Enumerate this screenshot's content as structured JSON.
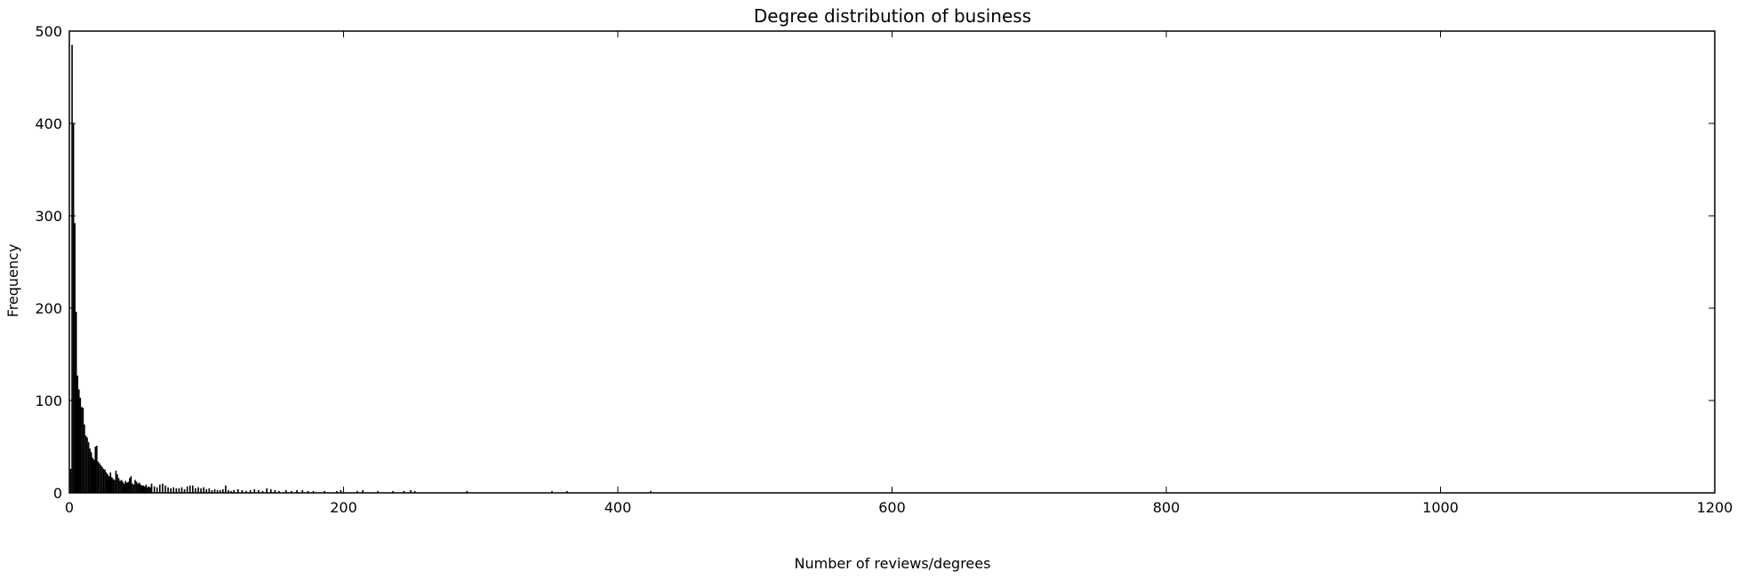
{
  "chart_data": {
    "type": "bar",
    "title": "Degree distribution of business",
    "xlabel": "Number of reviews/degrees",
    "ylabel": "Frequency",
    "xlim": [
      0,
      1200
    ],
    "ylim": [
      0,
      500
    ],
    "x_ticks": [
      "0",
      "200",
      "400",
      "600",
      "800",
      "1000",
      "1200"
    ],
    "y_ticks": [
      "0",
      "100",
      "200",
      "300",
      "400",
      "500"
    ],
    "grid": false,
    "bar_color": "#000000",
    "bins": [
      {
        "x": 1,
        "y": 26
      },
      {
        "x": 2,
        "y": 485
      },
      {
        "x": 3,
        "y": 400
      },
      {
        "x": 4,
        "y": 292
      },
      {
        "x": 5,
        "y": 196
      },
      {
        "x": 6,
        "y": 127
      },
      {
        "x": 7,
        "y": 112
      },
      {
        "x": 8,
        "y": 103
      },
      {
        "x": 9,
        "y": 93
      },
      {
        "x": 10,
        "y": 92
      },
      {
        "x": 11,
        "y": 74
      },
      {
        "x": 12,
        "y": 62
      },
      {
        "x": 13,
        "y": 60
      },
      {
        "x": 14,
        "y": 55
      },
      {
        "x": 15,
        "y": 48
      },
      {
        "x": 16,
        "y": 44
      },
      {
        "x": 17,
        "y": 38
      },
      {
        "x": 18,
        "y": 36
      },
      {
        "x": 19,
        "y": 50
      },
      {
        "x": 20,
        "y": 51
      },
      {
        "x": 21,
        "y": 34
      },
      {
        "x": 22,
        "y": 32
      },
      {
        "x": 23,
        "y": 30
      },
      {
        "x": 24,
        "y": 28
      },
      {
        "x": 25,
        "y": 26
      },
      {
        "x": 26,
        "y": 25
      },
      {
        "x": 27,
        "y": 22
      },
      {
        "x": 28,
        "y": 20
      },
      {
        "x": 29,
        "y": 18
      },
      {
        "x": 30,
        "y": 22
      },
      {
        "x": 31,
        "y": 17
      },
      {
        "x": 32,
        "y": 15
      },
      {
        "x": 33,
        "y": 14
      },
      {
        "x": 34,
        "y": 24
      },
      {
        "x": 35,
        "y": 20
      },
      {
        "x": 36,
        "y": 16
      },
      {
        "x": 37,
        "y": 13
      },
      {
        "x": 38,
        "y": 14
      },
      {
        "x": 39,
        "y": 12
      },
      {
        "x": 40,
        "y": 10
      },
      {
        "x": 41,
        "y": 13
      },
      {
        "x": 42,
        "y": 11
      },
      {
        "x": 43,
        "y": 12
      },
      {
        "x": 44,
        "y": 16
      },
      {
        "x": 45,
        "y": 18
      },
      {
        "x": 46,
        "y": 10
      },
      {
        "x": 47,
        "y": 9
      },
      {
        "x": 48,
        "y": 14
      },
      {
        "x": 49,
        "y": 12
      },
      {
        "x": 50,
        "y": 10
      },
      {
        "x": 51,
        "y": 11
      },
      {
        "x": 52,
        "y": 9
      },
      {
        "x": 53,
        "y": 8
      },
      {
        "x": 54,
        "y": 8
      },
      {
        "x": 55,
        "y": 7
      },
      {
        "x": 56,
        "y": 9
      },
      {
        "x": 57,
        "y": 6
      },
      {
        "x": 58,
        "y": 7
      },
      {
        "x": 59,
        "y": 6
      },
      {
        "x": 60,
        "y": 10
      },
      {
        "x": 62,
        "y": 7
      },
      {
        "x": 64,
        "y": 6
      },
      {
        "x": 66,
        "y": 9
      },
      {
        "x": 68,
        "y": 10
      },
      {
        "x": 70,
        "y": 8
      },
      {
        "x": 72,
        "y": 6
      },
      {
        "x": 74,
        "y": 5
      },
      {
        "x": 76,
        "y": 6
      },
      {
        "x": 78,
        "y": 5
      },
      {
        "x": 80,
        "y": 5
      },
      {
        "x": 82,
        "y": 6
      },
      {
        "x": 84,
        "y": 4
      },
      {
        "x": 86,
        "y": 7
      },
      {
        "x": 88,
        "y": 8
      },
      {
        "x": 90,
        "y": 8
      },
      {
        "x": 92,
        "y": 5
      },
      {
        "x": 94,
        "y": 6
      },
      {
        "x": 96,
        "y": 5
      },
      {
        "x": 98,
        "y": 6
      },
      {
        "x": 100,
        "y": 4
      },
      {
        "x": 102,
        "y": 5
      },
      {
        "x": 104,
        "y": 3
      },
      {
        "x": 106,
        "y": 4
      },
      {
        "x": 108,
        "y": 3
      },
      {
        "x": 110,
        "y": 3
      },
      {
        "x": 112,
        "y": 4
      },
      {
        "x": 114,
        "y": 8
      },
      {
        "x": 116,
        "y": 3
      },
      {
        "x": 118,
        "y": 2
      },
      {
        "x": 120,
        "y": 3
      },
      {
        "x": 123,
        "y": 4
      },
      {
        "x": 126,
        "y": 3
      },
      {
        "x": 129,
        "y": 2
      },
      {
        "x": 132,
        "y": 3
      },
      {
        "x": 135,
        "y": 4
      },
      {
        "x": 138,
        "y": 3
      },
      {
        "x": 141,
        "y": 2
      },
      {
        "x": 144,
        "y": 5
      },
      {
        "x": 147,
        "y": 4
      },
      {
        "x": 150,
        "y": 3
      },
      {
        "x": 153,
        "y": 2
      },
      {
        "x": 158,
        "y": 3
      },
      {
        "x": 162,
        "y": 2
      },
      {
        "x": 166,
        "y": 3
      },
      {
        "x": 170,
        "y": 3
      },
      {
        "x": 174,
        "y": 2
      },
      {
        "x": 178,
        "y": 2
      },
      {
        "x": 186,
        "y": 2
      },
      {
        "x": 195,
        "y": 2
      },
      {
        "x": 198,
        "y": 3
      },
      {
        "x": 210,
        "y": 2
      },
      {
        "x": 214,
        "y": 3
      },
      {
        "x": 225,
        "y": 2
      },
      {
        "x": 236,
        "y": 2
      },
      {
        "x": 244,
        "y": 2
      },
      {
        "x": 249,
        "y": 3
      },
      {
        "x": 252,
        "y": 2
      },
      {
        "x": 290,
        "y": 2
      },
      {
        "x": 352,
        "y": 2
      },
      {
        "x": 363,
        "y": 2
      },
      {
        "x": 424,
        "y": 2
      }
    ]
  }
}
